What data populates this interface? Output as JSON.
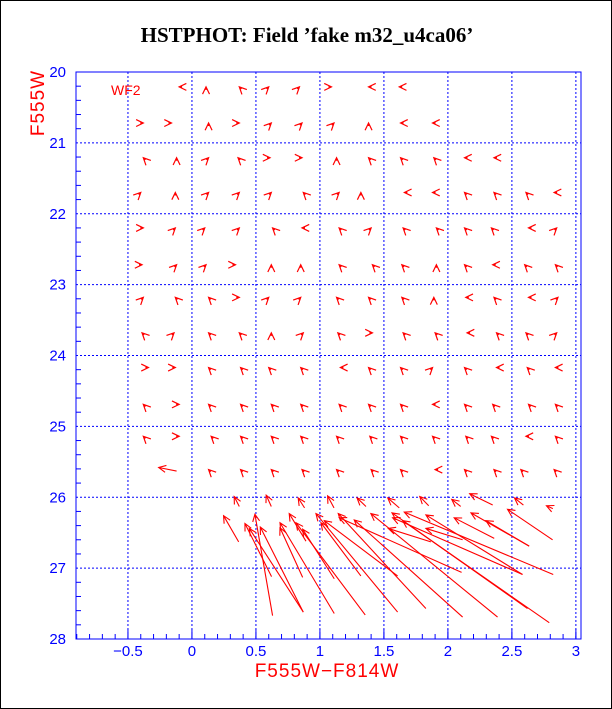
{
  "chart_data": {
    "type": "vector",
    "title": "HSTPHOT: Field ’fake m32_u4ca06’",
    "xlabel": "F555W−F814W",
    "ylabel": "F555W",
    "legend": "WF2",
    "legend_position": "top-left",
    "xlim": [
      -0.906,
      3.04
    ],
    "ylim": [
      20,
      28
    ],
    "y_inverted": true,
    "grid": true,
    "x_ticks": [
      -0.5,
      0,
      0.5,
      1,
      1.5,
      2,
      2.5,
      3
    ],
    "x_tick_labels": [
      "−0.5",
      "0",
      "0.5",
      "1",
      "1.5",
      "2",
      "2.5",
      "3"
    ],
    "y_ticks": [
      20,
      21,
      22,
      23,
      24,
      25,
      26,
      27,
      28
    ],
    "y_tick_labels": [
      "20",
      "21",
      "22",
      "23",
      "24",
      "25",
      "26",
      "27",
      "28"
    ],
    "colors": {
      "arrows": "#ff0000",
      "axes": "#0000ff",
      "title": "#000000"
    },
    "small_arrows": [
      {
        "y": 20.21,
        "x": [
          -0.1,
          0.11,
          0.37,
          0.6,
          0.84,
          1.09,
          1.38,
          1.62
        ],
        "dir": "LUQEERLL"
      },
      {
        "y": 20.72,
        "x": [
          -0.38,
          -0.16,
          0.13,
          0.37,
          0.62,
          0.86,
          1.11,
          1.38,
          1.63,
          1.88
        ],
        "dir": "RRUREEEULL"
      },
      {
        "y": 21.21,
        "x": [
          -0.38,
          -0.12,
          0.13,
          0.36,
          0.61,
          0.86,
          1.13,
          1.38,
          1.63,
          1.89,
          2.13,
          2.36
        ],
        "dir": "QUEQRRUQQQLL"
      },
      {
        "y": 21.7,
        "x": [
          -0.4,
          -0.13,
          0.13,
          0.37,
          0.62,
          0.87,
          1.15,
          1.32,
          1.66,
          1.88,
          2.13,
          2.36,
          2.61,
          2.83
        ],
        "dir": "EUEEEQEULLQQQL"
      },
      {
        "y": 22.2,
        "x": [
          -0.38,
          -0.13,
          0.1,
          0.37,
          0.63,
          0.86,
          1.15,
          1.4,
          1.65,
          1.91,
          2.13,
          2.34,
          2.63,
          2.85
        ],
        "dir": "REEEQLQEQQQQLE"
      },
      {
        "y": 22.72,
        "x": [
          -0.39,
          -0.12,
          0.11,
          0.34,
          0.62,
          0.85,
          1.15,
          1.41,
          1.64,
          1.91,
          2.13,
          2.35,
          2.6,
          2.84
        ],
        "dir": "REERUUQQQUQLQQ"
      },
      {
        "y": 23.18,
        "x": [
          -0.38,
          -0.13,
          0.13,
          0.37,
          0.6,
          0.85,
          1.13,
          1.38,
          1.64,
          1.89,
          2.14,
          2.36,
          2.63,
          2.86
        ],
        "dir": "EQQREEQQQULQLE"
      },
      {
        "y": 23.68,
        "x": [
          -0.39,
          -0.14,
          0.13,
          0.37,
          0.62,
          0.87,
          1.14,
          1.41,
          1.65,
          1.9,
          2.15,
          2.38,
          2.61,
          2.85
        ],
        "dir": "QEQQUEQRQQLQQE"
      },
      {
        "y": 24.17,
        "x": [
          -0.34,
          -0.13,
          0.13,
          0.38,
          0.6,
          0.85,
          1.16,
          1.38,
          1.63,
          1.88,
          2.13,
          2.38,
          2.62,
          2.84
        ],
        "dir": "RRQQQQLQQEQLQL"
      },
      {
        "y": 24.69,
        "x": [
          -0.38,
          -0.1,
          0.13,
          0.38,
          0.62,
          0.85,
          1.15,
          1.38,
          1.63,
          1.88,
          2.13,
          2.35,
          2.63,
          2.84
        ],
        "dir": "QRQQQQQQQLQQQQ"
      },
      {
        "y": 25.14,
        "x": [
          -0.38,
          -0.1,
          0.15,
          0.38,
          0.62,
          0.85,
          1.13,
          1.39,
          1.63,
          1.88,
          2.14,
          2.34,
          2.61,
          2.84
        ],
        "dir": "QRQQQQQQQQQQLQ"
      },
      {
        "y": 25.61,
        "x": [
          0.13,
          0.38,
          0.62,
          0.86,
          1.13,
          1.4,
          1.63,
          1.9,
          2.13,
          2.36,
          2.57,
          2.83
        ],
        "dir": "QQQQQQQLQQQQ"
      }
    ],
    "vectors": [
      {
        "from": [
          -0.12,
          25.63
        ],
        "to": [
          -0.26,
          25.58
        ]
      },
      {
        "from": [
          0.37,
          26.13
        ],
        "to": [
          0.33,
          25.99
        ]
      },
      {
        "from": [
          0.62,
          26.13
        ],
        "to": [
          0.58,
          25.97
        ]
      },
      {
        "from": [
          0.88,
          26.15
        ],
        "to": [
          0.83,
          26.01
        ]
      },
      {
        "from": [
          1.11,
          26.15
        ],
        "to": [
          1.06,
          25.98
        ]
      },
      {
        "from": [
          1.36,
          26.13
        ],
        "to": [
          1.29,
          26.01
        ]
      },
      {
        "from": [
          1.62,
          26.15
        ],
        "to": [
          1.53,
          26.01
        ]
      },
      {
        "from": [
          1.85,
          26.12
        ],
        "to": [
          1.78,
          25.99
        ]
      },
      {
        "from": [
          2.1,
          26.13
        ],
        "to": [
          2.03,
          26.03
        ]
      },
      {
        "from": [
          2.35,
          26.11
        ],
        "to": [
          2.17,
          25.95
        ]
      },
      {
        "from": [
          2.59,
          26.11
        ],
        "to": [
          2.52,
          26.01
        ]
      },
      {
        "from": [
          2.82,
          26.16
        ],
        "to": [
          2.77,
          26.12
        ]
      },
      {
        "from": [
          0.365,
          26.63
        ],
        "to": [
          0.247,
          26.26
        ]
      },
      {
        "from": [
          0.622,
          27.12
        ],
        "to": [
          0.414,
          26.37
        ]
      },
      {
        "from": [
          0.63,
          27.67
        ],
        "to": [
          0.492,
          26.24
        ]
      },
      {
        "from": [
          0.87,
          27.62
        ],
        "to": [
          0.448,
          26.44
        ]
      },
      {
        "from": [
          0.87,
          27.62
        ],
        "to": [
          0.534,
          26.42
        ]
      },
      {
        "from": [
          1.112,
          27.64
        ],
        "to": [
          0.688,
          26.36
        ]
      },
      {
        "from": [
          0.865,
          27.13
        ],
        "to": [
          0.688,
          26.43
        ]
      },
      {
        "from": [
          0.891,
          26.62
        ],
        "to": [
          0.76,
          26.23
        ]
      },
      {
        "from": [
          1.354,
          27.66
        ],
        "to": [
          0.813,
          26.36
        ]
      },
      {
        "from": [
          1.112,
          27.15
        ],
        "to": [
          0.865,
          26.45
        ]
      },
      {
        "from": [
          1.607,
          27.62
        ],
        "to": [
          0.969,
          26.23
        ]
      },
      {
        "from": [
          1.32,
          27.11
        ],
        "to": [
          1.008,
          26.36
        ]
      },
      {
        "from": [
          1.607,
          27.11
        ],
        "to": [
          1.034,
          26.33
        ]
      },
      {
        "from": [
          1.828,
          27.57
        ],
        "to": [
          1.143,
          26.23
        ]
      },
      {
        "from": [
          2.107,
          27.06
        ],
        "to": [
          1.151,
          26.29
        ]
      },
      {
        "from": [
          2.115,
          27.69
        ],
        "to": [
          1.268,
          26.32
        ]
      },
      {
        "from": [
          2.388,
          27.69
        ],
        "to": [
          1.398,
          26.23
        ]
      },
      {
        "from": [
          1.867,
          26.63
        ],
        "to": [
          1.534,
          26.44
        ]
      },
      {
        "from": [
          2.622,
          27.57
        ],
        "to": [
          1.563,
          26.22
        ]
      },
      {
        "from": [
          2.583,
          27.09
        ],
        "to": [
          1.568,
          26.29
        ]
      },
      {
        "from": [
          2.792,
          27.77
        ],
        "to": [
          1.646,
          26.33
        ]
      },
      {
        "from": [
          2.823,
          27.09
        ],
        "to": [
          1.659,
          26.21
        ]
      },
      {
        "from": [
          2.583,
          27.09
        ],
        "to": [
          1.828,
          26.25
        ]
      },
      {
        "from": [
          2.115,
          26.6
        ],
        "to": [
          1.828,
          26.44
        ]
      },
      {
        "from": [
          2.362,
          26.58
        ],
        "to": [
          2.049,
          26.29
        ]
      },
      {
        "from": [
          2.635,
          26.69
        ],
        "to": [
          2.18,
          26.22
        ]
      },
      {
        "from": [
          2.635,
          26.69
        ],
        "to": [
          2.297,
          26.33
        ]
      },
      {
        "from": [
          2.818,
          26.6
        ],
        "to": [
          2.466,
          26.17
        ]
      }
    ]
  }
}
